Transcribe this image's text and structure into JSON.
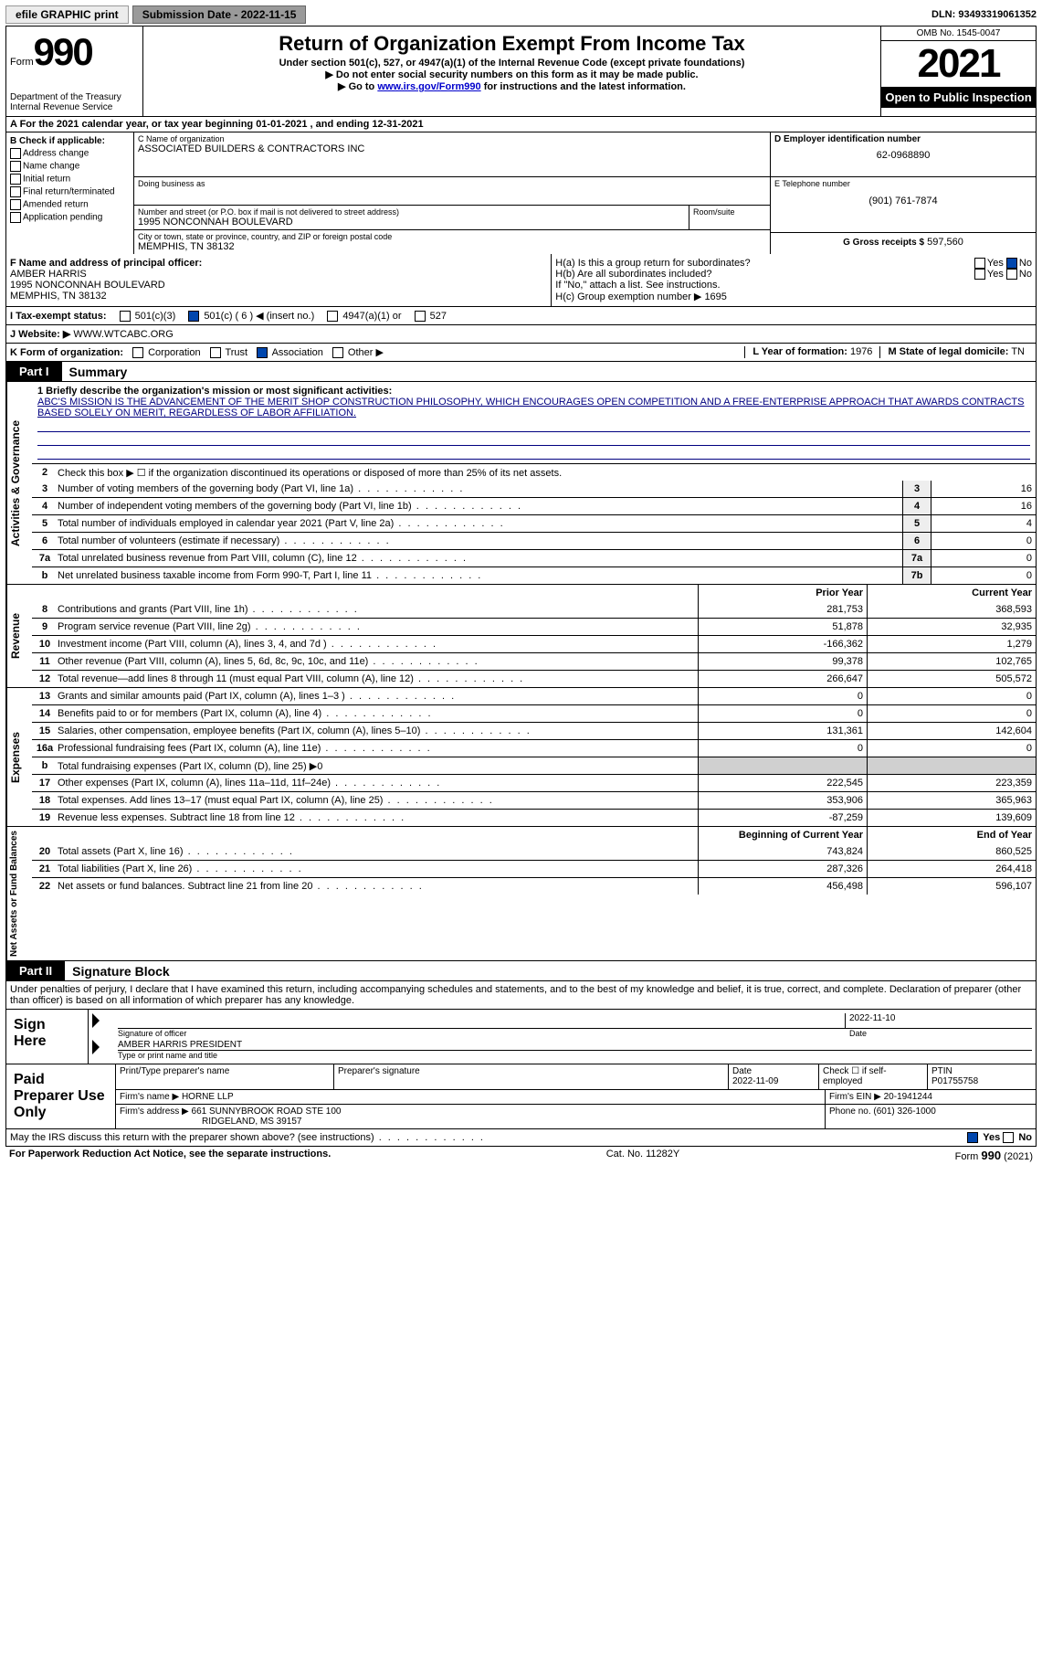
{
  "topbar": {
    "efile": "efile GRAPHIC print",
    "submission_label": "Submission Date - 2022-11-15",
    "dln_label": "DLN: 93493319061352"
  },
  "header": {
    "form_word": "Form",
    "form_num": "990",
    "dept": "Department of the Treasury Internal Revenue Service",
    "title": "Return of Organization Exempt From Income Tax",
    "subtitle": "Under section 501(c), 527, or 4947(a)(1) of the Internal Revenue Code (except private foundations)",
    "note1": "▶ Do not enter social security numbers on this form as it may be made public.",
    "note2_pre": "▶ Go to ",
    "note2_link": "www.irs.gov/Form990",
    "note2_post": " for instructions and the latest information.",
    "omb": "OMB No. 1545-0047",
    "year": "2021",
    "open_pub": "Open to Public Inspection"
  },
  "row_a": "A For the 2021 calendar year, or tax year beginning 01-01-2021    , and ending 12-31-2021",
  "block_b": {
    "check_label": "B Check if applicable:",
    "opts": [
      "Address change",
      "Name change",
      "Initial return",
      "Final return/terminated",
      "Amended return",
      "Application pending"
    ],
    "c_name_label": "C Name of organization",
    "c_name": "ASSOCIATED BUILDERS & CONTRACTORS INC",
    "dba_label": "Doing business as",
    "dba": "",
    "street_label": "Number and street (or P.O. box if mail is not delivered to street address)",
    "room_label": "Room/suite",
    "street": "1995 NONCONNAH BOULEVARD",
    "city_label": "City or town, state or province, country, and ZIP or foreign postal code",
    "city": "MEMPHIS, TN  38132",
    "d_label": "D Employer identification number",
    "d_val": "62-0968890",
    "e_label": "E Telephone number",
    "e_val": "(901) 761-7874",
    "g_label": "G Gross receipts $",
    "g_val": "597,560"
  },
  "block_fg": {
    "f_label": "F  Name and address of principal officer:",
    "f_name": "AMBER HARRIS",
    "f_street": "1995 NONCONNAH BOULEVARD",
    "f_city": "MEMPHIS, TN  38132",
    "ha_label": "H(a)  Is this a group return for subordinates?",
    "hb_label": "H(b)  Are all subordinates included?",
    "h_note": "If \"No,\" attach a list. See instructions.",
    "hc_label": "H(c)  Group exemption number ▶",
    "hc_val": "1695",
    "yes": "Yes",
    "no": "No"
  },
  "row_i": {
    "label": "I   Tax-exempt status:",
    "opt1": "501(c)(3)",
    "opt2": "501(c) ( 6 ) ◀ (insert no.)",
    "opt3": "4947(a)(1) or",
    "opt4": "527"
  },
  "row_j": {
    "label": "J   Website: ▶",
    "val": "WWW.WTCABC.ORG"
  },
  "row_k": {
    "label": "K Form of organization:",
    "opt1": "Corporation",
    "opt2": "Trust",
    "opt3": "Association",
    "opt4": "Other ▶",
    "l_label": "L Year of formation:",
    "l_val": "1976",
    "m_label": "M State of legal domicile:",
    "m_val": "TN"
  },
  "part1": {
    "tab": "Part I",
    "title": "Summary",
    "line1_label": "1  Briefly describe the organization's mission or most significant activities:",
    "mission": "ABC'S MISSION IS THE ADVANCEMENT OF THE MERIT SHOP CONSTRUCTION PHILOSOPHY, WHICH ENCOURAGES OPEN COMPETITION AND A FREE-ENTERPRISE APPROACH THAT AWARDS CONTRACTS BASED SOLELY ON MERIT, REGARDLESS OF LABOR AFFILIATION.",
    "line2": "Check this box ▶ ☐ if the organization discontinued its operations or disposed of more than 25% of its net assets.",
    "gov_label": "Activities & Governance",
    "lines_gov": [
      {
        "n": "3",
        "d": "Number of voting members of the governing body (Part VI, line 1a)",
        "b": "3",
        "v": "16"
      },
      {
        "n": "4",
        "d": "Number of independent voting members of the governing body (Part VI, line 1b)",
        "b": "4",
        "v": "16"
      },
      {
        "n": "5",
        "d": "Total number of individuals employed in calendar year 2021 (Part V, line 2a)",
        "b": "5",
        "v": "4"
      },
      {
        "n": "6",
        "d": "Total number of volunteers (estimate if necessary)",
        "b": "6",
        "v": "0"
      },
      {
        "n": "7a",
        "d": "Total unrelated business revenue from Part VIII, column (C), line 12",
        "b": "7a",
        "v": "0"
      },
      {
        "n": "b",
        "d": "Net unrelated business taxable income from Form 990-T, Part I, line 11",
        "b": "7b",
        "v": "0"
      }
    ],
    "rev_label": "Revenue",
    "prior_hdr": "Prior Year",
    "curr_hdr": "Current Year",
    "lines_rev": [
      {
        "n": "8",
        "d": "Contributions and grants (Part VIII, line 1h)",
        "p": "281,753",
        "c": "368,593"
      },
      {
        "n": "9",
        "d": "Program service revenue (Part VIII, line 2g)",
        "p": "51,878",
        "c": "32,935"
      },
      {
        "n": "10",
        "d": "Investment income (Part VIII, column (A), lines 3, 4, and 7d )",
        "p": "-166,362",
        "c": "1,279"
      },
      {
        "n": "11",
        "d": "Other revenue (Part VIII, column (A), lines 5, 6d, 8c, 9c, 10c, and 11e)",
        "p": "99,378",
        "c": "102,765"
      },
      {
        "n": "12",
        "d": "Total revenue—add lines 8 through 11 (must equal Part VIII, column (A), line 12)",
        "p": "266,647",
        "c": "505,572"
      }
    ],
    "exp_label": "Expenses",
    "lines_exp": [
      {
        "n": "13",
        "d": "Grants and similar amounts paid (Part IX, column (A), lines 1–3 )",
        "p": "0",
        "c": "0"
      },
      {
        "n": "14",
        "d": "Benefits paid to or for members (Part IX, column (A), line 4)",
        "p": "0",
        "c": "0"
      },
      {
        "n": "15",
        "d": "Salaries, other compensation, employee benefits (Part IX, column (A), lines 5–10)",
        "p": "131,361",
        "c": "142,604"
      },
      {
        "n": "16a",
        "d": "Professional fundraising fees (Part IX, column (A), line 11e)",
        "p": "0",
        "c": "0"
      },
      {
        "n": "b",
        "d": "Total fundraising expenses (Part IX, column (D), line 25) ▶0",
        "p": "",
        "c": "",
        "shaded": true
      },
      {
        "n": "17",
        "d": "Other expenses (Part IX, column (A), lines 11a–11d, 11f–24e)",
        "p": "222,545",
        "c": "223,359"
      },
      {
        "n": "18",
        "d": "Total expenses. Add lines 13–17 (must equal Part IX, column (A), line 25)",
        "p": "353,906",
        "c": "365,963"
      },
      {
        "n": "19",
        "d": "Revenue less expenses. Subtract line 18 from line 12",
        "p": "-87,259",
        "c": "139,609"
      }
    ],
    "net_label": "Net Assets or Fund Balances",
    "beg_hdr": "Beginning of Current Year",
    "end_hdr": "End of Year",
    "lines_net": [
      {
        "n": "20",
        "d": "Total assets (Part X, line 16)",
        "p": "743,824",
        "c": "860,525"
      },
      {
        "n": "21",
        "d": "Total liabilities (Part X, line 26)",
        "p": "287,326",
        "c": "264,418"
      },
      {
        "n": "22",
        "d": "Net assets or fund balances. Subtract line 21 from line 20",
        "p": "456,498",
        "c": "596,107"
      }
    ]
  },
  "part2": {
    "tab": "Part II",
    "title": "Signature Block",
    "decl": "Under penalties of perjury, I declare that I have examined this return, including accompanying schedules and statements, and to the best of my knowledge and belief, it is true, correct, and complete. Declaration of preparer (other than officer) is based on all information of which preparer has any knowledge.",
    "sign_here": "Sign Here",
    "sig_officer": "Signature of officer",
    "sig_date": "2022-11-10",
    "date_label": "Date",
    "typed_name": "AMBER HARRIS  PRESIDENT",
    "typed_label": "Type or print name and title",
    "paid_label": "Paid Preparer Use Only",
    "prep_name_label": "Print/Type preparer's name",
    "prep_sig_label": "Preparer's signature",
    "prep_date_label": "Date",
    "prep_date": "2022-11-09",
    "check_self": "Check ☐ if self-employed",
    "ptin_label": "PTIN",
    "ptin": "P01755758",
    "firm_name_label": "Firm's name    ▶",
    "firm_name": "HORNE LLP",
    "firm_ein_label": "Firm's EIN ▶",
    "firm_ein": "20-1941244",
    "firm_addr_label": "Firm's address ▶",
    "firm_addr1": "661 SUNNYBROOK ROAD STE 100",
    "firm_addr2": "RIDGELAND, MS  39157",
    "phone_label": "Phone no.",
    "phone": "(601) 326-1000",
    "discuss": "May the IRS discuss this return with the preparer shown above? (see instructions)"
  },
  "footer": {
    "left": "For Paperwork Reduction Act Notice, see the separate instructions.",
    "mid": "Cat. No. 11282Y",
    "right": "Form 990 (2021)"
  }
}
